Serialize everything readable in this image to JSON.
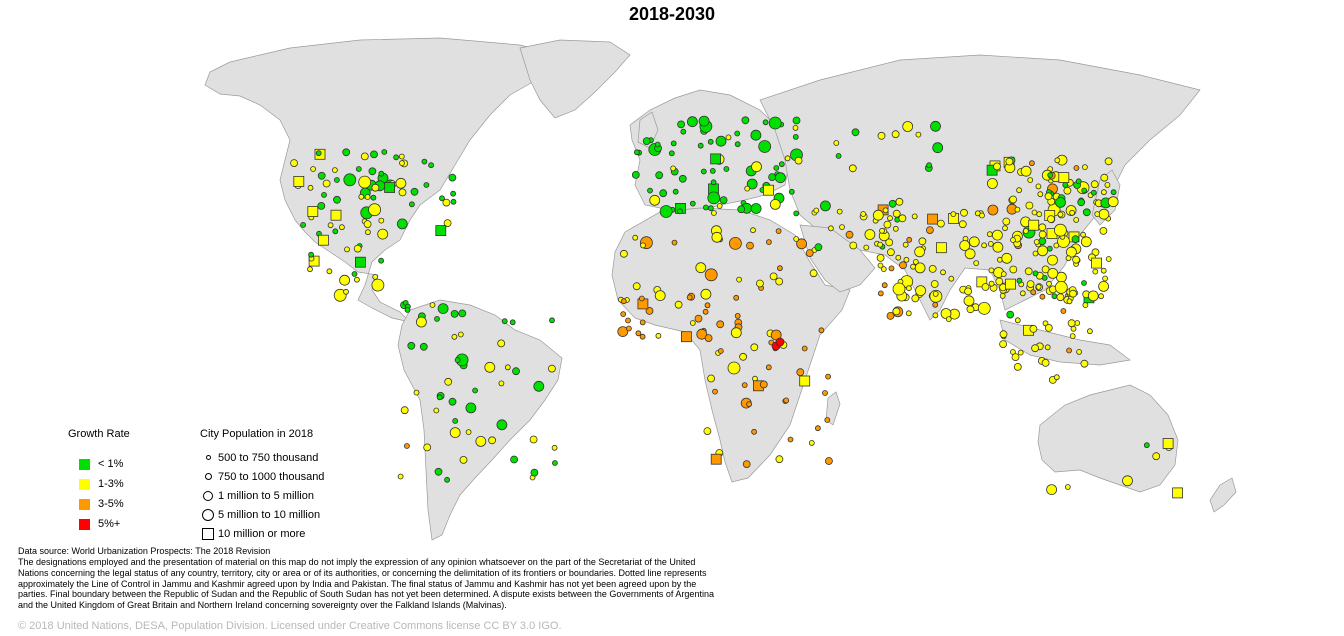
{
  "title": "2018-2030",
  "legend_growth": {
    "title": "Growth Rate",
    "items": [
      {
        "label": "< 1%",
        "color": "#00e000"
      },
      {
        "label": "1-3%",
        "color": "#ffff00"
      },
      {
        "label": "3-5%",
        "color": "#ff9900"
      },
      {
        "label": "5%+",
        "color": "#ff0000"
      }
    ]
  },
  "legend_size": {
    "title": "City Population in 2018",
    "items": [
      {
        "label": "500 to 750 thousand",
        "shape": "circle"
      },
      {
        "label": "750 to 1000 thousand",
        "shape": "circle"
      },
      {
        "label": "1 million to 5 million",
        "shape": "circle"
      },
      {
        "label": "5 million to 10 million",
        "shape": "circle"
      },
      {
        "label": "10 million or more",
        "shape": "square"
      }
    ]
  },
  "source": "Data source: World Urbanization Prospects: The 2018 Revision",
  "disclaimer": "The designations employed and the presentation of material on this map do not imply the expression of any opinion whatsoever on the part of the Secretariat of the United Nations concerning the legal status of any country, territory, city or area or of its authorities, or concerning the delimitation of its frontiers or boundaries. Dotted line represents approximately the Line of Control in Jammu and Kashmir agreed upon by India and Pakistan. The final status of Jammu and Kashmir has not yet been agreed upon by the parties. Final boundary between the Republic of Sudan and the Republic of South Sudan has not yet been determined. A dispute exists between the Governments of Argentina and the United Kingdom of Great Britain and Northern Ireland concerning sovereignty over the Falkland Islands (Malvinas).",
  "copyright": "© 2018 United Nations, DESA, Population Division. Licensed under Creative Commons license CC BY 3.0 IGO."
}
